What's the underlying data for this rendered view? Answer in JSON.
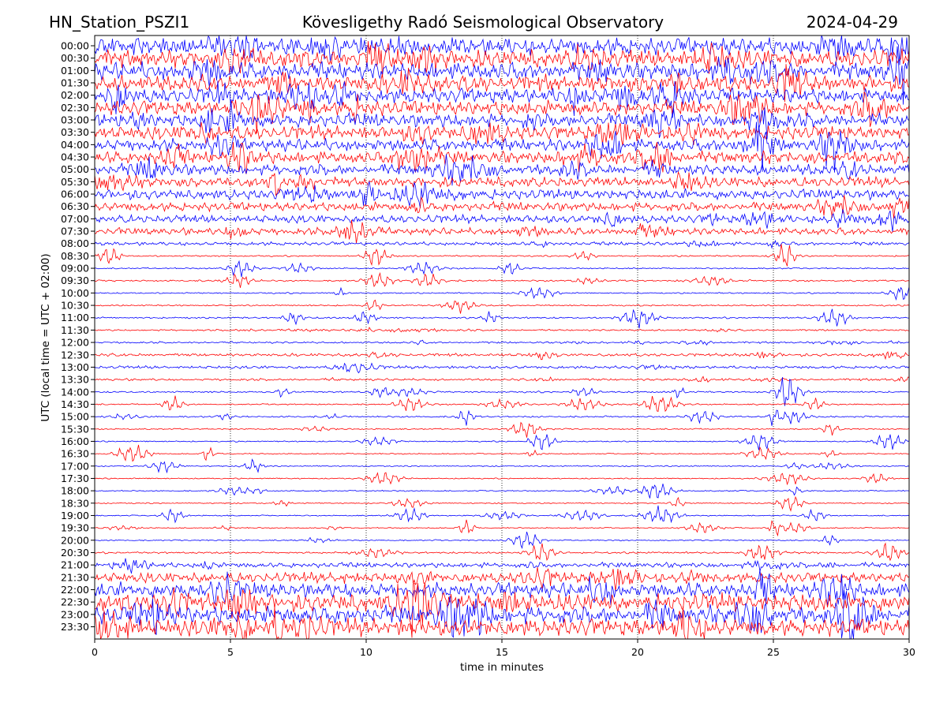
{
  "header": {
    "station": "HN_Station_PSZI1",
    "observatory": "Kövesligethy Radó Seismological Observatory",
    "date": "2024-04-29"
  },
  "chart_data": {
    "type": "line",
    "title": "Kövesligethy Radó Seismological Observatory",
    "xlabel": "time in minutes",
    "ylabel": "UTC (local time = UTC + 02:00)",
    "xlim": [
      0,
      30
    ],
    "x_ticks": [
      0,
      5,
      10,
      15,
      20,
      25,
      30
    ],
    "grid": "vertical dotted lines at 5-minute intervals",
    "trace_colors": [
      "#0000ff",
      "#ff0000"
    ],
    "trace_color_pattern": "alternating, starting with blue at 00:00",
    "rows": [
      {
        "label": "00:00",
        "amplitude": 1.0
      },
      {
        "label": "00:30",
        "amplitude": 1.0
      },
      {
        "label": "01:00",
        "amplitude": 1.0
      },
      {
        "label": "01:30",
        "amplitude": 0.95
      },
      {
        "label": "02:00",
        "amplitude": 0.9
      },
      {
        "label": "02:30",
        "amplitude": 0.9
      },
      {
        "label": "03:00",
        "amplitude": 0.85
      },
      {
        "label": "03:30",
        "amplitude": 0.85
      },
      {
        "label": "04:00",
        "amplitude": 0.8
      },
      {
        "label": "04:30",
        "amplitude": 0.8
      },
      {
        "label": "05:00",
        "amplitude": 0.75
      },
      {
        "label": "05:30",
        "amplitude": 0.7
      },
      {
        "label": "06:00",
        "amplitude": 0.7
      },
      {
        "label": "06:30",
        "amplitude": 0.65
      },
      {
        "label": "07:00",
        "amplitude": 0.6
      },
      {
        "label": "07:30",
        "amplitude": 0.55
      },
      {
        "label": "08:00",
        "amplitude": 0.35
      },
      {
        "label": "08:30",
        "amplitude": 0.12
      },
      {
        "label": "09:00",
        "amplitude": 0.1
      },
      {
        "label": "09:30",
        "amplitude": 0.15
      },
      {
        "label": "10:00",
        "amplitude": 0.1
      },
      {
        "label": "10:30",
        "amplitude": 0.12
      },
      {
        "label": "11:00",
        "amplitude": 0.15
      },
      {
        "label": "11:30",
        "amplitude": 0.2
      },
      {
        "label": "12:00",
        "amplitude": 0.22
      },
      {
        "label": "12:30",
        "amplitude": 0.3
      },
      {
        "label": "13:00",
        "amplitude": 0.3
      },
      {
        "label": "13:30",
        "amplitude": 0.25
      },
      {
        "label": "14:00",
        "amplitude": 0.15
      },
      {
        "label": "14:30",
        "amplitude": 0.1
      },
      {
        "label": "15:00",
        "amplitude": 0.15
      },
      {
        "label": "15:30",
        "amplitude": 0.1
      },
      {
        "label": "16:00",
        "amplitude": 0.08
      },
      {
        "label": "16:30",
        "amplitude": 0.05
      },
      {
        "label": "17:00",
        "amplitude": 0.06
      },
      {
        "label": "17:30",
        "amplitude": 0.06
      },
      {
        "label": "18:00",
        "amplitude": 0.08
      },
      {
        "label": "18:30",
        "amplitude": 0.06
      },
      {
        "label": "19:00",
        "amplitude": 0.06
      },
      {
        "label": "19:30",
        "amplitude": 0.05
      },
      {
        "label": "20:00",
        "amplitude": 0.08
      },
      {
        "label": "20:30",
        "amplitude": 0.18
      },
      {
        "label": "21:00",
        "amplitude": 0.45
      },
      {
        "label": "21:30",
        "amplitude": 0.7
      },
      {
        "label": "22:00",
        "amplitude": 0.9
      },
      {
        "label": "22:30",
        "amplitude": 1.0
      },
      {
        "label": "23:00",
        "amplitude": 1.0
      },
      {
        "label": "23:30",
        "amplitude": 1.0
      }
    ]
  }
}
